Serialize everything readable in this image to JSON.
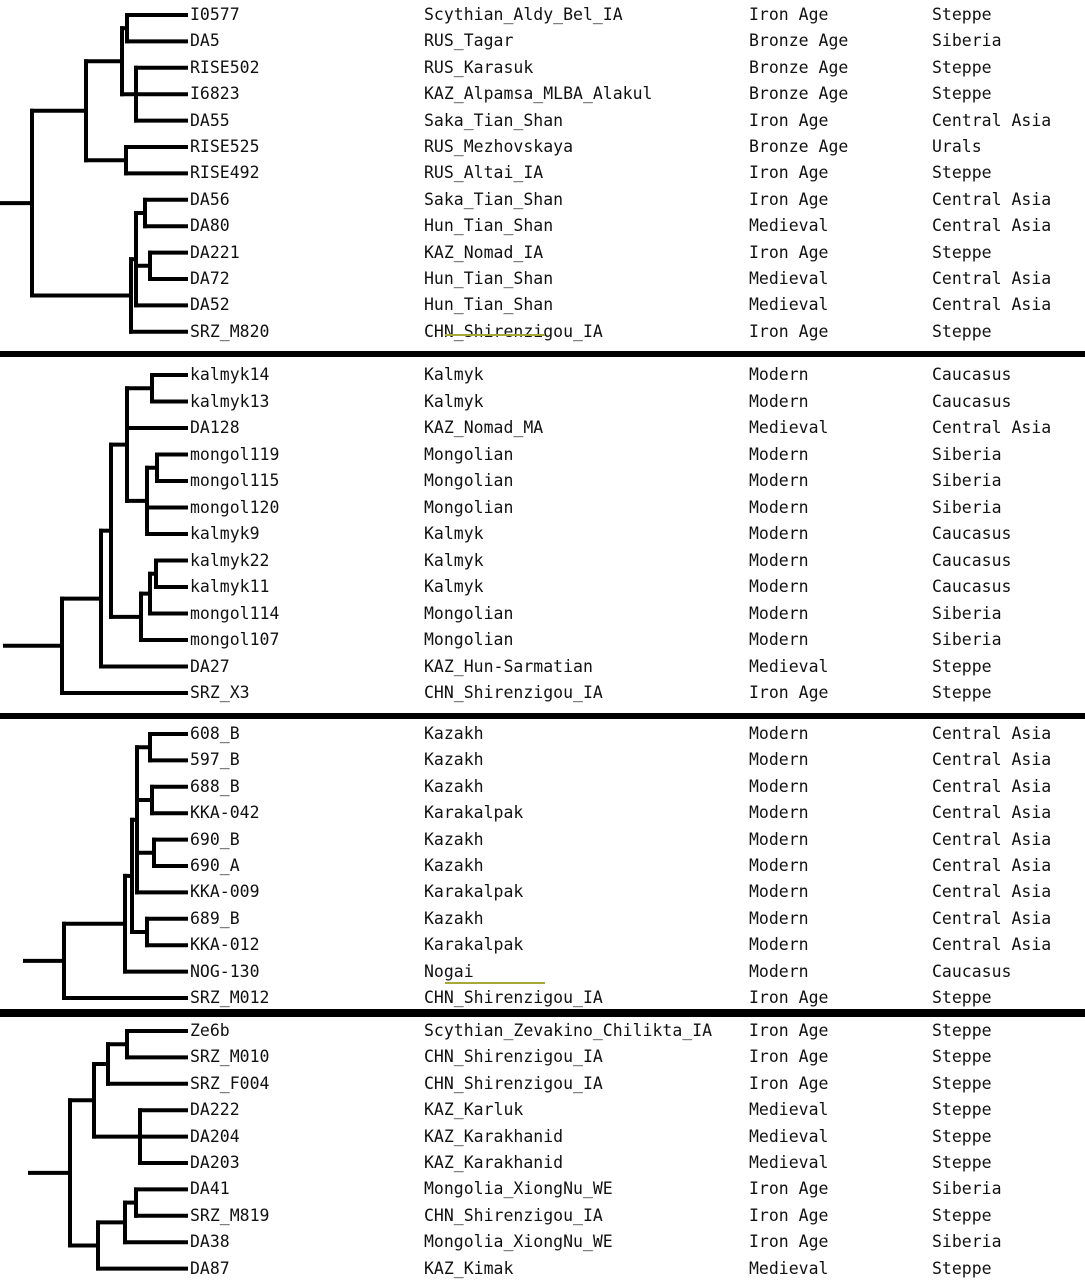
{
  "panels": [
    {
      "rows": [
        {
          "id": "I0577",
          "population": "Scythian_Aldy_Bel_IA",
          "period": "Iron Age",
          "region": "Steppe"
        },
        {
          "id": "DA5",
          "population": "RUS_Tagar",
          "period": "Bronze Age",
          "region": "Siberia"
        },
        {
          "id": "RISE502",
          "population": "RUS_Karasuk",
          "period": "Bronze Age",
          "region": "Steppe"
        },
        {
          "id": "I6823",
          "population": "KAZ_Alpamsa_MLBA_Alakul",
          "period": "Bronze Age",
          "region": "Steppe"
        },
        {
          "id": "DA55",
          "population": "Saka_Tian_Shan",
          "period": "Iron Age",
          "region": "Central Asia"
        },
        {
          "id": "RISE525",
          "population": "RUS_Mezhovskaya",
          "period": "Bronze Age",
          "region": "Urals"
        },
        {
          "id": "RISE492",
          "population": "RUS_Altai_IA",
          "period": "Iron Age",
          "region": "Steppe"
        },
        {
          "id": "DA56",
          "population": "Saka_Tian_Shan",
          "period": "Iron Age",
          "region": "Central Asia"
        },
        {
          "id": "DA80",
          "population": "Hun_Tian_Shan",
          "period": "Medieval",
          "region": "Central Asia"
        },
        {
          "id": "DA221",
          "population": "KAZ_Nomad_IA",
          "period": "Iron Age",
          "region": "Steppe"
        },
        {
          "id": "DA72",
          "population": "Hun_Tian_Shan",
          "period": "Medieval",
          "region": "Central Asia"
        },
        {
          "id": "DA52",
          "population": "Hun_Tian_Shan",
          "period": "Medieval",
          "region": "Central Asia"
        },
        {
          "id": "SRZ_M820",
          "population": "CHN_Shirenzigou_IA",
          "period": "Iron Age",
          "region": "Steppe"
        }
      ]
    },
    {
      "rows": [
        {
          "id": "kalmyk14",
          "population": "Kalmyk",
          "period": "Modern",
          "region": "Caucasus"
        },
        {
          "id": "kalmyk13",
          "population": "Kalmyk",
          "period": "Modern",
          "region": "Caucasus"
        },
        {
          "id": "DA128",
          "population": "KAZ_Nomad_MA",
          "period": "Medieval",
          "region": "Central Asia"
        },
        {
          "id": "mongol119",
          "population": "Mongolian",
          "period": "Modern",
          "region": "Siberia"
        },
        {
          "id": "mongol115",
          "population": "Mongolian",
          "period": "Modern",
          "region": "Siberia"
        },
        {
          "id": "mongol120",
          "population": "Mongolian",
          "period": "Modern",
          "region": "Siberia"
        },
        {
          "id": "kalmyk9",
          "population": "Kalmyk",
          "period": "Modern",
          "region": "Caucasus"
        },
        {
          "id": "kalmyk22",
          "population": "Kalmyk",
          "period": "Modern",
          "region": "Caucasus"
        },
        {
          "id": "kalmyk11",
          "population": "Kalmyk",
          "period": "Modern",
          "region": "Caucasus"
        },
        {
          "id": "mongol114",
          "population": "Mongolian",
          "period": "Modern",
          "region": "Siberia"
        },
        {
          "id": "mongol107",
          "population": "Mongolian",
          "period": "Modern",
          "region": "Siberia"
        },
        {
          "id": "DA27",
          "population": "KAZ_Hun-Sarmatian",
          "period": "Medieval",
          "region": "Steppe"
        },
        {
          "id": "SRZ_X3",
          "population": "CHN_Shirenzigou_IA",
          "period": "Iron Age",
          "region": "Steppe"
        }
      ]
    },
    {
      "rows": [
        {
          "id": "608_B",
          "population": "Kazakh",
          "period": "Modern",
          "region": "Central Asia"
        },
        {
          "id": "597_B",
          "population": "Kazakh",
          "period": "Modern",
          "region": "Central Asia"
        },
        {
          "id": "688_B",
          "population": "Kazakh",
          "period": "Modern",
          "region": "Central Asia"
        },
        {
          "id": "KKA-042",
          "population": "Karakalpak",
          "period": "Modern",
          "region": "Central Asia"
        },
        {
          "id": "690_B",
          "population": "Kazakh",
          "period": "Modern",
          "region": "Central Asia"
        },
        {
          "id": "690_A",
          "population": "Kazakh",
          "period": "Modern",
          "region": "Central Asia"
        },
        {
          "id": "KKA-009",
          "population": "Karakalpak",
          "period": "Modern",
          "region": "Central Asia"
        },
        {
          "id": "689_B",
          "population": "Kazakh",
          "period": "Modern",
          "region": "Central Asia"
        },
        {
          "id": "KKA-012",
          "population": "Karakalpak",
          "period": "Modern",
          "region": "Central Asia"
        },
        {
          "id": "NOG-130",
          "population": "Nogai",
          "period": "Modern",
          "region": "Caucasus"
        },
        {
          "id": "SRZ_M012",
          "population": "CHN_Shirenzigou_IA",
          "period": "Iron Age",
          "region": "Steppe"
        }
      ]
    },
    {
      "rows": [
        {
          "id": "Ze6b",
          "population": "Scythian_Zevakino_Chilikta_IA",
          "period": "Iron Age",
          "region": "Steppe"
        },
        {
          "id": "SRZ_M010",
          "population": "CHN_Shirenzigou_IA",
          "period": "Iron Age",
          "region": "Steppe"
        },
        {
          "id": "SRZ_F004",
          "population": "CHN_Shirenzigou_IA",
          "period": "Iron Age",
          "region": "Steppe"
        },
        {
          "id": "DA222",
          "population": "KAZ_Karluk",
          "period": "Medieval",
          "region": "Steppe"
        },
        {
          "id": "DA204",
          "population": "KAZ_Karakhanid",
          "period": "Medieval",
          "region": "Steppe"
        },
        {
          "id": "DA203",
          "population": "KAZ_Karakhanid",
          "period": "Medieval",
          "region": "Steppe"
        },
        {
          "id": "DA41",
          "population": "Mongolia_XiongNu_WE",
          "period": "Iron Age",
          "region": "Siberia"
        },
        {
          "id": "SRZ_M819",
          "population": "CHN_Shirenzigou_IA",
          "period": "Iron Age",
          "region": "Steppe"
        },
        {
          "id": "DA38",
          "population": "Mongolia_XiongNu_WE",
          "period": "Iron Age",
          "region": "Siberia"
        },
        {
          "id": "DA87",
          "population": "KAZ_Kimak",
          "period": "Medieval",
          "region": "Steppe"
        }
      ]
    }
  ]
}
